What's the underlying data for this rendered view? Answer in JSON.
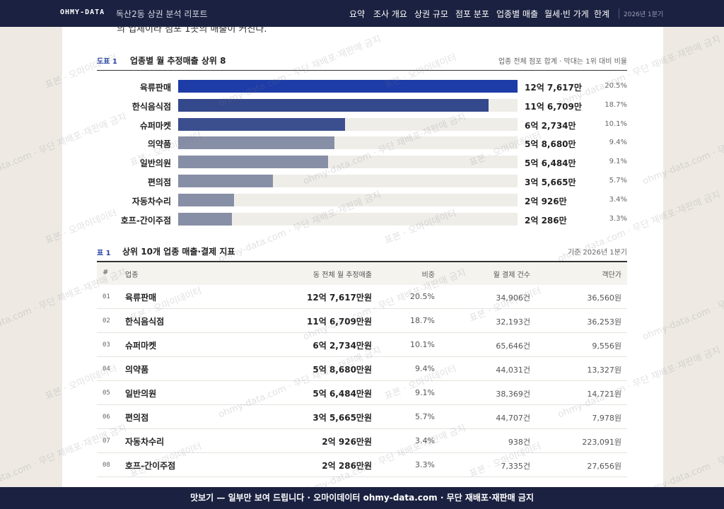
{
  "nav": {
    "logo": "OHMY-DATA",
    "title": "독산2동 상권 분석 리포트",
    "items": [
      "요약",
      "조사 개요",
      "상권 규모",
      "점포 분포",
      "업종별 매출",
      "월세·빈 가게",
      "한계"
    ],
    "period": "2026년 1분기"
  },
  "intro_text": "의 업체이라 점포 1곳의 매출이 커진다.",
  "figure": {
    "type": "bar",
    "label": "도표 1",
    "title": "업종별 월 추정매출 상위 8",
    "note": "업종 전체 점포 합계 · 막대는 1위 대비 비율",
    "categories": [
      "육류판매",
      "한식음식점",
      "슈퍼마켓",
      "의약품",
      "일반의원",
      "편의점",
      "자동차수리",
      "호프-간이주점"
    ],
    "values": [
      127617,
      116709,
      62734,
      58680,
      56484,
      35665,
      20926,
      20286
    ],
    "value_labels": [
      "12억 7,617만",
      "11억 6,709만",
      "6억 2,734만",
      "5억 8,680만",
      "5억 6,484만",
      "3억 5,665만",
      "2억 926만",
      "2억 286만"
    ],
    "share_labels": [
      "20.5%",
      "18.7%",
      "10.1%",
      "9.4%",
      "9.1%",
      "5.7%",
      "3.4%",
      "3.3%"
    ],
    "colors": [
      "#1d3ca8",
      "#34488c",
      "#3b4e8e",
      "#878fa6",
      "#878fa6",
      "#878fa6",
      "#878fa6",
      "#878fa6"
    ]
  },
  "table": {
    "label": "표 1",
    "title": "상위 10개 업종 매출·결제 지표",
    "note": "기준 2026년 1분기",
    "columns": [
      "#",
      "업종",
      "동 전체 월 추정매출",
      "비중",
      "월 결제 건수",
      "객단가"
    ],
    "rows": [
      [
        "01",
        "육류판매",
        "12억 7,617만원",
        "20.5%",
        "34,906건",
        "36,560원"
      ],
      [
        "02",
        "한식음식점",
        "11억 6,709만원",
        "18.7%",
        "32,193건",
        "36,253원"
      ],
      [
        "03",
        "슈퍼마켓",
        "6억 2,734만원",
        "10.1%",
        "65,646건",
        "9,556원"
      ],
      [
        "04",
        "의약품",
        "5억 8,680만원",
        "9.4%",
        "44,031건",
        "13,327원"
      ],
      [
        "05",
        "일반의원",
        "5억 6,484만원",
        "9.1%",
        "38,369건",
        "14,721원"
      ],
      [
        "06",
        "편의점",
        "3억 5,665만원",
        "5.7%",
        "44,707건",
        "7,978원"
      ],
      [
        "07",
        "자동차수리",
        "2억 926만원",
        "3.4%",
        "938건",
        "223,091원"
      ],
      [
        "08",
        "호프-간이주점",
        "2억 286만원",
        "3.3%",
        "7,335건",
        "27,656원"
      ]
    ]
  },
  "watermark": [
    "표본 · 오마이데이터",
    "ohmy-data.com · 무단 재배포·재판매 금지"
  ],
  "footer": "맛보기 — 일부만 보여 드립니다 · 오마이데이터 ohmy-data.com · 무단 재배포·재판매 금지"
}
